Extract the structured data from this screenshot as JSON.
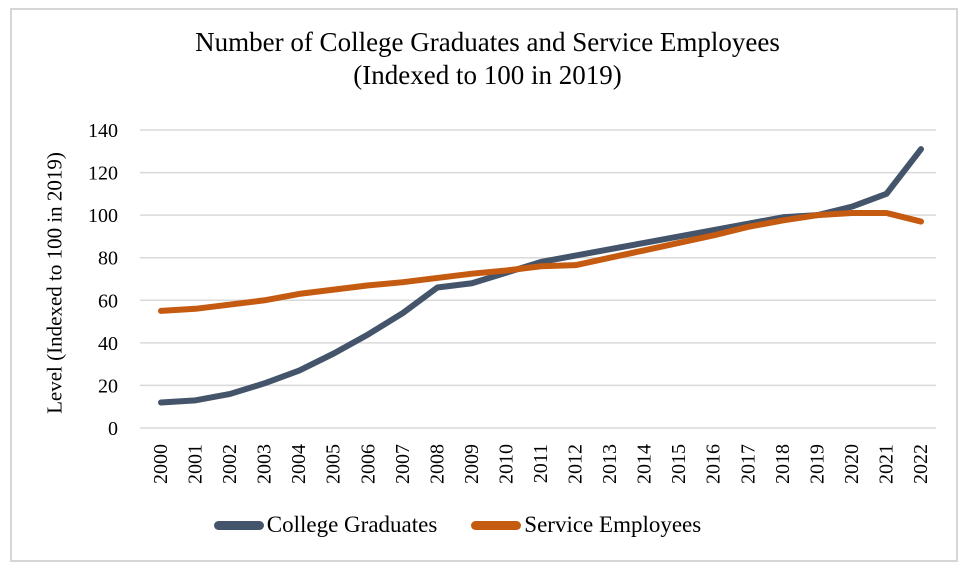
{
  "frame": {
    "background": "#FFFFFF",
    "border_color": "#D6D6D6"
  },
  "chart_data": {
    "type": "line",
    "title_line1": "Number of College Graduates and Service Employees",
    "title_line2": "(Indexed to 100 in 2019)",
    "ylabel": "Level (Indexed to 100 in 2019)",
    "xlabel": "",
    "ylim": [
      0,
      140
    ],
    "yticks": [
      0,
      20,
      40,
      60,
      80,
      100,
      120,
      140
    ],
    "grid": "horizontal",
    "gridline_color": "#D9D9D9",
    "legend_position": "bottom",
    "categories": [
      "2000",
      "2001",
      "2002",
      "2003",
      "2004",
      "2005",
      "2006",
      "2007",
      "2008",
      "2009",
      "2010",
      "2011",
      "2012",
      "2013",
      "2014",
      "2015",
      "2016",
      "2017",
      "2018",
      "2019",
      "2020",
      "2021",
      "2022"
    ],
    "series": [
      {
        "name": "College Graduates",
        "color": "#44546A",
        "values": [
          12,
          13,
          16,
          21,
          27,
          35,
          44,
          54,
          66,
          68,
          73,
          78,
          81,
          84,
          87,
          90,
          93,
          96,
          99,
          100,
          104,
          110,
          131
        ]
      },
      {
        "name": "Service Employees",
        "color": "#C55A11",
        "values": [
          55,
          56,
          58,
          60,
          63,
          65,
          67,
          68.5,
          70.5,
          72.5,
          74,
          76,
          76.5,
          80,
          83.5,
          87,
          90.5,
          94.5,
          97.5,
          100,
          101,
          101,
          97
        ]
      }
    ]
  }
}
